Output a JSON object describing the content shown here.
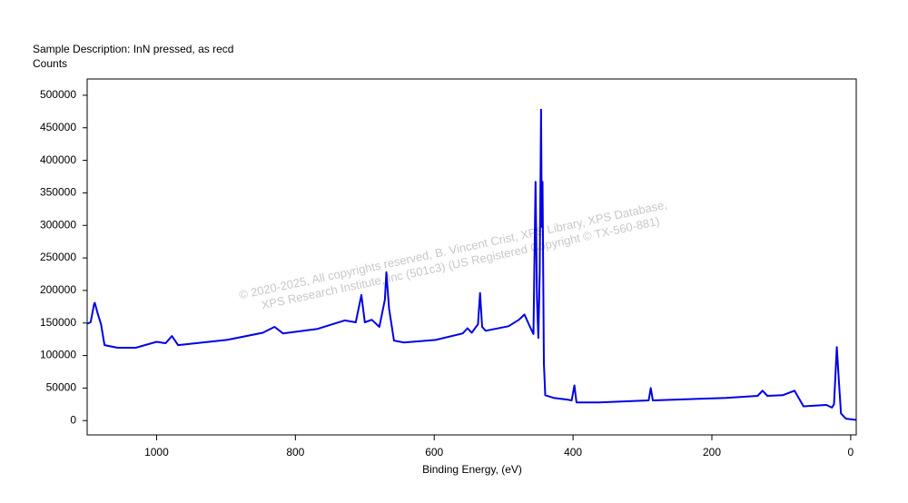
{
  "chart_data": {
    "type": "line",
    "title": "Sample Description:  InN pressed, as recd",
    "y_label": "Counts",
    "x_label": "Binding Energy, (eV)",
    "annotations": [
      "©  2020-2025,  All copyrights reserved,   B. Vincent Crist,   XPS Library, XPS Database,",
      "XPS Research Institute, Inc (501c3)   (US Registered Copyright © TX-560-881)"
    ],
    "x": [
      1100,
      1095,
      1090,
      1089,
      1085,
      1080,
      1075,
      1056,
      1030,
      1000,
      987,
      978,
      969,
      899,
      847,
      830,
      818,
      768,
      729,
      713,
      705,
      700,
      690,
      679,
      671,
      669,
      665,
      658,
      644,
      598,
      559,
      552,
      546,
      537,
      534,
      531,
      526,
      493,
      478,
      470,
      462,
      457,
      454,
      452,
      450,
      448,
      446,
      445,
      444,
      442,
      440,
      428,
      407,
      402,
      398,
      395,
      363,
      291,
      288,
      285,
      179,
      134,
      127,
      120,
      98,
      81,
      68,
      35,
      27,
      24,
      20,
      17,
      14,
      7,
      -8
    ],
    "series": [
      {
        "name": "InN",
        "color": "#0000e6",
        "values": [
          149000,
          151000,
          179000,
          181000,
          165000,
          148000,
          116000,
          112000,
          112000,
          121000,
          119000,
          130000,
          116000,
          124000,
          135000,
          144000,
          134000,
          141000,
          154000,
          151000,
          193000,
          151000,
          155000,
          144000,
          186000,
          228000,
          172000,
          123000,
          120000,
          124000,
          134000,
          142000,
          135000,
          148000,
          196000,
          144000,
          138000,
          145000,
          155000,
          163000,
          144000,
          133000,
          367000,
          186000,
          127000,
          228000,
          478000,
          298000,
          367000,
          88000,
          39000,
          35000,
          32000,
          31000,
          54000,
          28000,
          28000,
          31000,
          50000,
          31000,
          35000,
          38000,
          46000,
          38000,
          39000,
          46000,
          22000,
          24000,
          20000,
          25000,
          113000,
          60000,
          11000,
          3000,
          1000
        ]
      }
    ],
    "xlim": [
      1100,
      -8
    ],
    "ylim": [
      -22000,
      525000
    ],
    "xticks": [
      1000,
      800,
      600,
      400,
      200,
      0
    ],
    "yticks": [
      0,
      50000,
      100000,
      150000,
      200000,
      250000,
      300000,
      350000,
      400000,
      450000,
      500000
    ]
  }
}
